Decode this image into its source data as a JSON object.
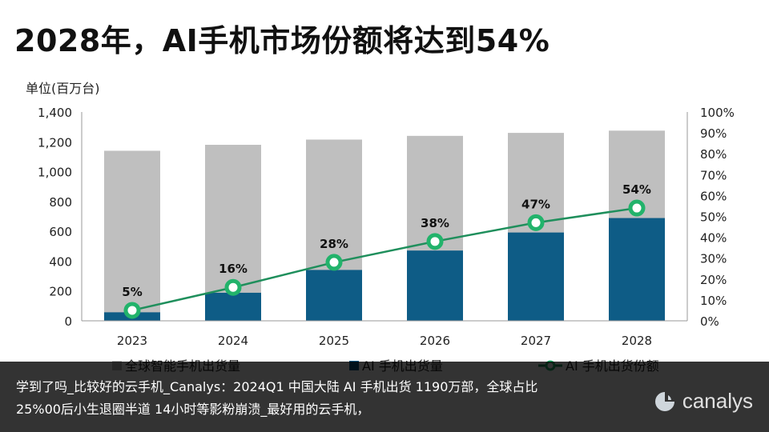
{
  "page": {
    "title": "2028年，AI手机市场份额将达到54%",
    "caption": "学到了吗_比较好的云手机_Canalys：2024Q1 中国大陆 AI 手机出货 1190万部，全球占比 25%00后小生退圈半道 14小时等影粉崩溃_最好用的云手机，",
    "logo_text": "canalys"
  },
  "chart_data": {
    "type": "bar",
    "title": "2028年，AI手机市场份额将达到54%",
    "ylabel": "单位(百万台)",
    "categories": [
      "2023",
      "2024",
      "2025",
      "2026",
      "2027",
      "2028"
    ],
    "ylim": [
      0,
      1400
    ],
    "yticks": [
      "0",
      "200",
      "400",
      "600",
      "800",
      "1,000",
      "1,200",
      "1,400"
    ],
    "y2lim": [
      0,
      100
    ],
    "y2ticks": [
      "0%",
      "10%",
      "20%",
      "30%",
      "40%",
      "50%",
      "60%",
      "70%",
      "80%",
      "90%",
      "100%"
    ],
    "series": [
      {
        "name": "全球智能手机出货量",
        "kind": "bar",
        "color": "#bfbfbf",
        "values": [
          1140,
          1180,
          1215,
          1240,
          1260,
          1275
        ]
      },
      {
        "name": "AI 手机出货量",
        "kind": "bar",
        "color": "#0e5c86",
        "values": [
          57,
          188,
          341,
          471,
          592,
          689
        ]
      },
      {
        "name": "AI 手机出货份额",
        "kind": "line",
        "axis": "right",
        "color": "#1f8f5c",
        "values": [
          5,
          16,
          28,
          38,
          47,
          54
        ],
        "labels": [
          "5%",
          "16%",
          "28%",
          "38%",
          "47%",
          "54%"
        ]
      }
    ],
    "legend_position": "bottom"
  }
}
